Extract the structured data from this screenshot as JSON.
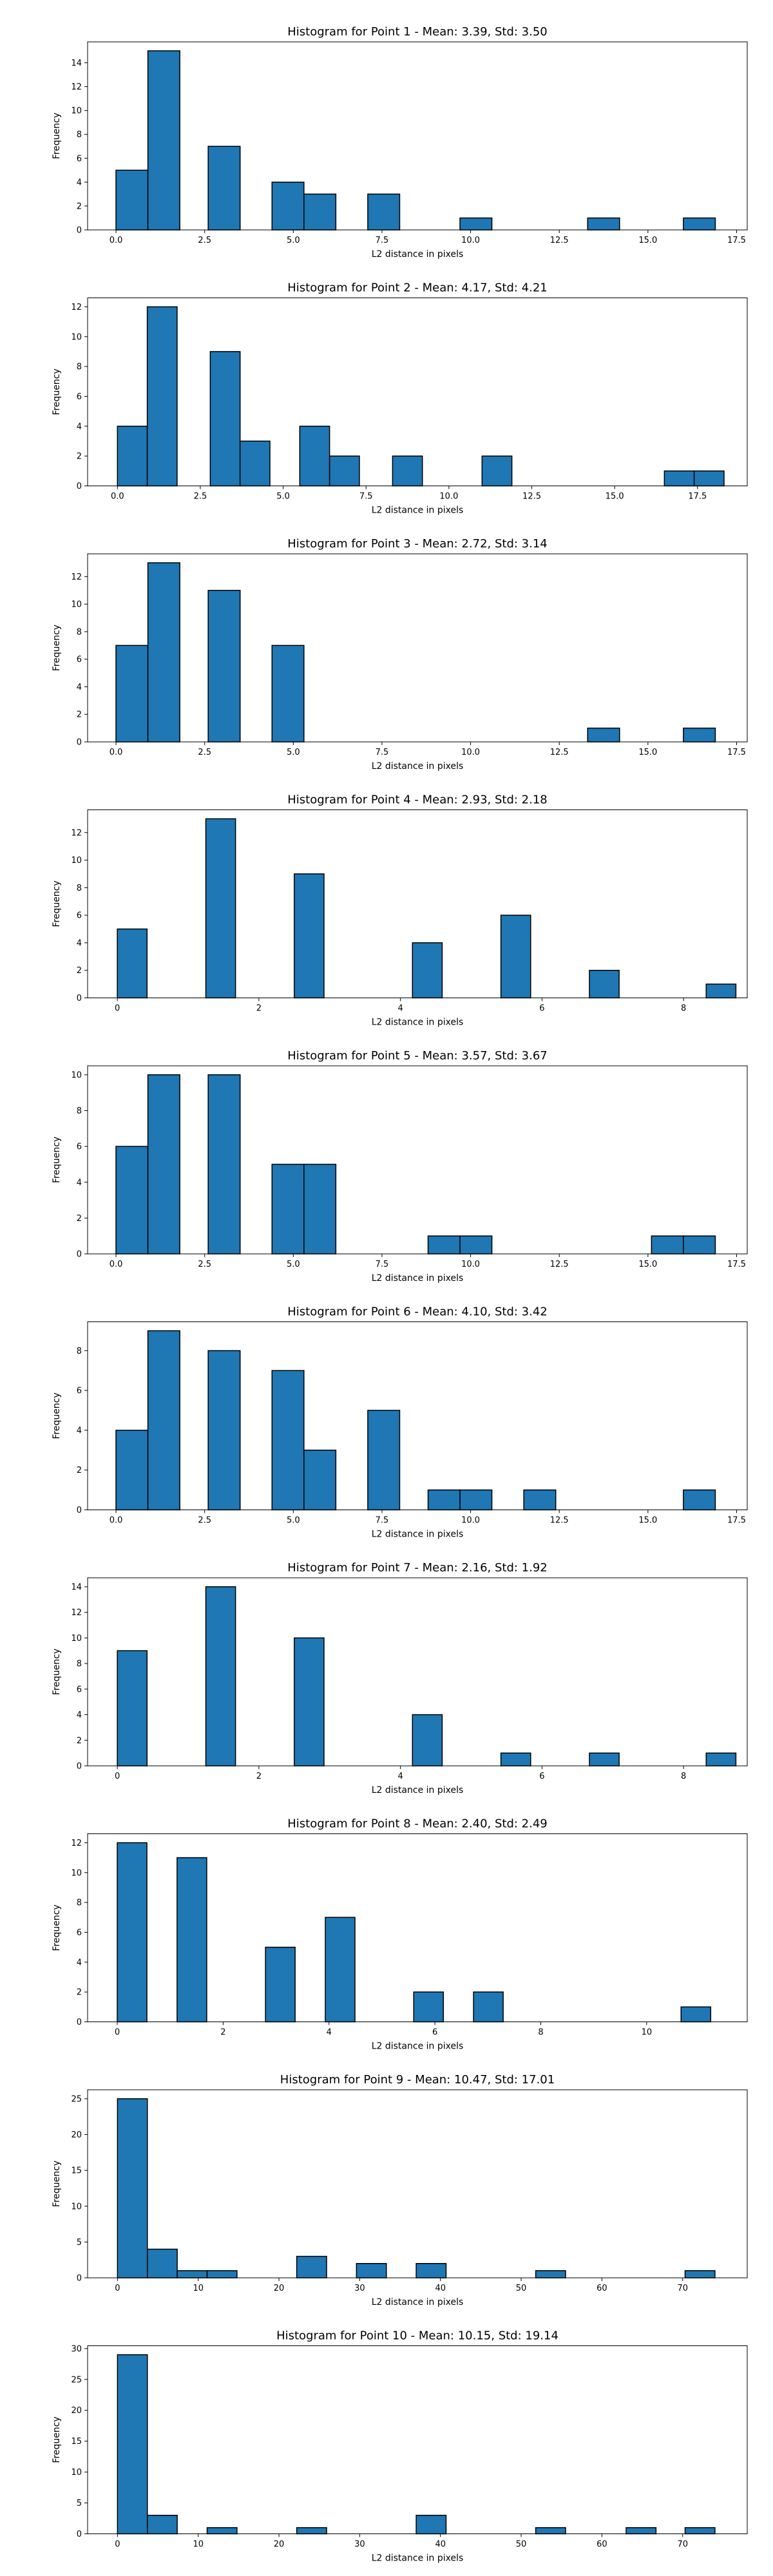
{
  "chart_data": [
    {
      "type": "bar",
      "title": "Histogram for Point 1 - Mean: 3.39, Std: 3.50",
      "xlabel": "L2 distance in pixels",
      "ylabel": "Frequency",
      "xlim": [
        -0.8,
        17.8
      ],
      "ylim": [
        0,
        15.75
      ],
      "xticks": [
        0.0,
        2.5,
        5.0,
        7.5,
        10.0,
        12.5,
        15.0,
        17.5
      ],
      "xtick_labels": [
        "0.0",
        "2.5",
        "5.0",
        "7.5",
        "10.0",
        "12.5",
        "15.0",
        "17.5"
      ],
      "yticks": [
        0,
        2,
        4,
        6,
        8,
        10,
        12,
        14
      ],
      "bins": [
        {
          "x0": 0.0,
          "x1": 0.9,
          "count": 5
        },
        {
          "x0": 0.9,
          "x1": 1.8,
          "count": 15
        },
        {
          "x0": 2.6,
          "x1": 3.5,
          "count": 7
        },
        {
          "x0": 4.4,
          "x1": 5.3,
          "count": 4
        },
        {
          "x0": 5.3,
          "x1": 6.2,
          "count": 3
        },
        {
          "x0": 7.1,
          "x1": 8.0,
          "count": 3
        },
        {
          "x0": 9.7,
          "x1": 10.6,
          "count": 1
        },
        {
          "x0": 13.3,
          "x1": 14.2,
          "count": 1
        },
        {
          "x0": 16.0,
          "x1": 16.9,
          "count": 1
        }
      ]
    },
    {
      "type": "bar",
      "title": "Histogram for Point 2 - Mean: 4.17, Std: 4.21",
      "xlabel": "L2 distance in pixels",
      "ylabel": "Frequency",
      "xlim": [
        -0.9,
        19.0
      ],
      "ylim": [
        0,
        12.6
      ],
      "xticks": [
        0.0,
        2.5,
        5.0,
        7.5,
        10.0,
        12.5,
        15.0,
        17.5
      ],
      "xtick_labels": [
        "0.0",
        "2.5",
        "5.0",
        "7.5",
        "10.0",
        "12.5",
        "15.0",
        "17.5"
      ],
      "yticks": [
        0,
        2,
        4,
        6,
        8,
        10,
        12
      ],
      "bins": [
        {
          "x0": 0.0,
          "x1": 0.9,
          "count": 4
        },
        {
          "x0": 0.9,
          "x1": 1.8,
          "count": 12
        },
        {
          "x0": 2.8,
          "x1": 3.7,
          "count": 9
        },
        {
          "x0": 3.7,
          "x1": 4.6,
          "count": 3
        },
        {
          "x0": 5.5,
          "x1": 6.4,
          "count": 4
        },
        {
          "x0": 6.4,
          "x1": 7.3,
          "count": 2
        },
        {
          "x0": 8.3,
          "x1": 9.2,
          "count": 2
        },
        {
          "x0": 11.0,
          "x1": 11.9,
          "count": 2
        },
        {
          "x0": 16.5,
          "x1": 17.4,
          "count": 1
        },
        {
          "x0": 17.4,
          "x1": 18.3,
          "count": 1
        }
      ]
    },
    {
      "type": "bar",
      "title": "Histogram for Point 3 - Mean: 2.72, Std: 3.14",
      "xlabel": "L2 distance in pixels",
      "ylabel": "Frequency",
      "xlim": [
        -0.8,
        17.8
      ],
      "ylim": [
        0,
        13.65
      ],
      "xticks": [
        0.0,
        2.5,
        5.0,
        7.5,
        10.0,
        12.5,
        15.0,
        17.5
      ],
      "xtick_labels": [
        "0.0",
        "2.5",
        "5.0",
        "7.5",
        "10.0",
        "12.5",
        "15.0",
        "17.5"
      ],
      "yticks": [
        0,
        2,
        4,
        6,
        8,
        10,
        12
      ],
      "bins": [
        {
          "x0": 0.0,
          "x1": 0.9,
          "count": 7
        },
        {
          "x0": 0.9,
          "x1": 1.8,
          "count": 13
        },
        {
          "x0": 2.6,
          "x1": 3.5,
          "count": 11
        },
        {
          "x0": 4.4,
          "x1": 5.3,
          "count": 7
        },
        {
          "x0": 13.3,
          "x1": 14.2,
          "count": 1
        },
        {
          "x0": 16.0,
          "x1": 16.9,
          "count": 1
        }
      ]
    },
    {
      "type": "bar",
      "title": "Histogram for Point 4 - Mean: 2.93, Std: 2.18",
      "xlabel": "L2 distance in pixels",
      "ylabel": "Frequency",
      "xlim": [
        -0.42,
        8.9
      ],
      "ylim": [
        0,
        13.65
      ],
      "xticks": [
        0,
        2,
        4,
        6,
        8
      ],
      "xtick_labels": [
        "0",
        "2",
        "4",
        "6",
        "8"
      ],
      "yticks": [
        0,
        2,
        4,
        6,
        8,
        10,
        12
      ],
      "bins": [
        {
          "x0": 0.0,
          "x1": 0.42,
          "count": 5
        },
        {
          "x0": 1.25,
          "x1": 1.67,
          "count": 13
        },
        {
          "x0": 2.5,
          "x1": 2.92,
          "count": 9
        },
        {
          "x0": 4.17,
          "x1": 4.59,
          "count": 4
        },
        {
          "x0": 5.42,
          "x1": 5.84,
          "count": 6
        },
        {
          "x0": 6.67,
          "x1": 7.09,
          "count": 2
        },
        {
          "x0": 8.32,
          "x1": 8.74,
          "count": 1
        }
      ]
    },
    {
      "type": "bar",
      "title": "Histogram for Point 5 - Mean: 3.57, Std: 3.67",
      "xlabel": "L2 distance in pixels",
      "ylabel": "Frequency",
      "xlim": [
        -0.8,
        17.8
      ],
      "ylim": [
        0,
        10.5
      ],
      "xticks": [
        0.0,
        2.5,
        5.0,
        7.5,
        10.0,
        12.5,
        15.0,
        17.5
      ],
      "xtick_labels": [
        "0.0",
        "2.5",
        "5.0",
        "7.5",
        "10.0",
        "12.5",
        "15.0",
        "17.5"
      ],
      "yticks": [
        0,
        2,
        4,
        6,
        8,
        10
      ],
      "bins": [
        {
          "x0": 0.0,
          "x1": 0.9,
          "count": 6
        },
        {
          "x0": 0.9,
          "x1": 1.8,
          "count": 10
        },
        {
          "x0": 2.6,
          "x1": 3.5,
          "count": 10
        },
        {
          "x0": 4.4,
          "x1": 5.3,
          "count": 5
        },
        {
          "x0": 5.3,
          "x1": 6.2,
          "count": 5
        },
        {
          "x0": 8.8,
          "x1": 9.7,
          "count": 1
        },
        {
          "x0": 9.7,
          "x1": 10.6,
          "count": 1
        },
        {
          "x0": 15.1,
          "x1": 16.0,
          "count": 1
        },
        {
          "x0": 16.0,
          "x1": 16.9,
          "count": 1
        }
      ]
    },
    {
      "type": "bar",
      "title": "Histogram for Point 6 - Mean: 4.10, Std: 3.42",
      "xlabel": "L2 distance in pixels",
      "ylabel": "Frequency",
      "xlim": [
        -0.8,
        17.8
      ],
      "ylim": [
        0,
        9.45
      ],
      "xticks": [
        0.0,
        2.5,
        5.0,
        7.5,
        10.0,
        12.5,
        15.0,
        17.5
      ],
      "xtick_labels": [
        "0.0",
        "2.5",
        "5.0",
        "7.5",
        "10.0",
        "12.5",
        "15.0",
        "17.5"
      ],
      "yticks": [
        0,
        2,
        4,
        6,
        8
      ],
      "bins": [
        {
          "x0": 0.0,
          "x1": 0.9,
          "count": 4
        },
        {
          "x0": 0.9,
          "x1": 1.8,
          "count": 9
        },
        {
          "x0": 2.6,
          "x1": 3.5,
          "count": 8
        },
        {
          "x0": 4.4,
          "x1": 5.3,
          "count": 7
        },
        {
          "x0": 5.3,
          "x1": 6.2,
          "count": 3
        },
        {
          "x0": 7.1,
          "x1": 8.0,
          "count": 5
        },
        {
          "x0": 8.8,
          "x1": 9.7,
          "count": 1
        },
        {
          "x0": 9.7,
          "x1": 10.6,
          "count": 1
        },
        {
          "x0": 11.5,
          "x1": 12.4,
          "count": 1
        },
        {
          "x0": 16.0,
          "x1": 16.9,
          "count": 1
        }
      ]
    },
    {
      "type": "bar",
      "title": "Histogram for Point 7 - Mean: 2.16, Std: 1.92",
      "xlabel": "L2 distance in pixels",
      "ylabel": "Frequency",
      "xlim": [
        -0.42,
        8.9
      ],
      "ylim": [
        0,
        14.7
      ],
      "xticks": [
        0,
        2,
        4,
        6,
        8
      ],
      "xtick_labels": [
        "0",
        "2",
        "4",
        "6",
        "8"
      ],
      "yticks": [
        0,
        2,
        4,
        6,
        8,
        10,
        12,
        14
      ],
      "bins": [
        {
          "x0": 0.0,
          "x1": 0.42,
          "count": 9
        },
        {
          "x0": 1.25,
          "x1": 1.67,
          "count": 14
        },
        {
          "x0": 2.5,
          "x1": 2.92,
          "count": 10
        },
        {
          "x0": 4.17,
          "x1": 4.59,
          "count": 4
        },
        {
          "x0": 5.42,
          "x1": 5.84,
          "count": 1
        },
        {
          "x0": 6.67,
          "x1": 7.09,
          "count": 1
        },
        {
          "x0": 8.32,
          "x1": 8.74,
          "count": 1
        }
      ]
    },
    {
      "type": "bar",
      "title": "Histogram for Point 8 - Mean: 2.40, Std: 2.49",
      "xlabel": "L2 distance in pixels",
      "ylabel": "Frequency",
      "xlim": [
        -0.56,
        11.9
      ],
      "ylim": [
        0,
        12.6
      ],
      "xticks": [
        0,
        2,
        4,
        6,
        8,
        10
      ],
      "xtick_labels": [
        "0",
        "2",
        "4",
        "6",
        "8",
        "10"
      ],
      "yticks": [
        0,
        2,
        4,
        6,
        8,
        10,
        12
      ],
      "bins": [
        {
          "x0": 0.0,
          "x1": 0.56,
          "count": 12
        },
        {
          "x0": 1.13,
          "x1": 1.69,
          "count": 11
        },
        {
          "x0": 2.8,
          "x1": 3.36,
          "count": 5
        },
        {
          "x0": 3.93,
          "x1": 4.49,
          "count": 7
        },
        {
          "x0": 5.6,
          "x1": 6.16,
          "count": 2
        },
        {
          "x0": 6.73,
          "x1": 7.29,
          "count": 2
        },
        {
          "x0": 10.65,
          "x1": 11.21,
          "count": 1
        }
      ]
    },
    {
      "type": "bar",
      "title": "Histogram for Point 9 - Mean: 10.47, Std: 17.01",
      "xlabel": "L2 distance in pixels",
      "ylabel": "Frequency",
      "xlim": [
        -3.7,
        78.0
      ],
      "ylim": [
        0,
        26.25
      ],
      "xticks": [
        0,
        10,
        20,
        30,
        40,
        50,
        60,
        70
      ],
      "xtick_labels": [
        "0",
        "10",
        "20",
        "30",
        "40",
        "50",
        "60",
        "70"
      ],
      "yticks": [
        0,
        5,
        10,
        15,
        20,
        25
      ],
      "bins": [
        {
          "x0": 0.0,
          "x1": 3.7,
          "count": 25
        },
        {
          "x0": 3.7,
          "x1": 7.4,
          "count": 4
        },
        {
          "x0": 7.4,
          "x1": 11.1,
          "count": 1
        },
        {
          "x0": 11.1,
          "x1": 14.8,
          "count": 1
        },
        {
          "x0": 22.2,
          "x1": 25.9,
          "count": 3
        },
        {
          "x0": 29.6,
          "x1": 33.3,
          "count": 2
        },
        {
          "x0": 37.0,
          "x1": 40.7,
          "count": 2
        },
        {
          "x0": 51.8,
          "x1": 55.5,
          "count": 1
        },
        {
          "x0": 70.3,
          "x1": 74.0,
          "count": 1
        }
      ]
    },
    {
      "type": "bar",
      "title": "Histogram for Point 10 - Mean: 10.15, Std: 19.14",
      "xlabel": "L2 distance in pixels",
      "ylabel": "Frequency",
      "xlim": [
        -3.7,
        78.0
      ],
      "ylim": [
        0,
        30.45
      ],
      "xticks": [
        0,
        10,
        20,
        30,
        40,
        50,
        60,
        70
      ],
      "xtick_labels": [
        "0",
        "10",
        "20",
        "30",
        "40",
        "50",
        "60",
        "70"
      ],
      "yticks": [
        0,
        5,
        10,
        15,
        20,
        25,
        30
      ],
      "bins": [
        {
          "x0": 0.0,
          "x1": 3.7,
          "count": 29
        },
        {
          "x0": 3.7,
          "x1": 7.4,
          "count": 3
        },
        {
          "x0": 11.1,
          "x1": 14.8,
          "count": 1
        },
        {
          "x0": 22.2,
          "x1": 25.9,
          "count": 1
        },
        {
          "x0": 37.0,
          "x1": 40.7,
          "count": 3
        },
        {
          "x0": 51.8,
          "x1": 55.5,
          "count": 1
        },
        {
          "x0": 63.0,
          "x1": 66.7,
          "count": 1
        },
        {
          "x0": 70.3,
          "x1": 74.0,
          "count": 1
        }
      ]
    }
  ],
  "colors": {
    "bar_fill": "#1f77b4",
    "bar_edge": "#000000"
  }
}
